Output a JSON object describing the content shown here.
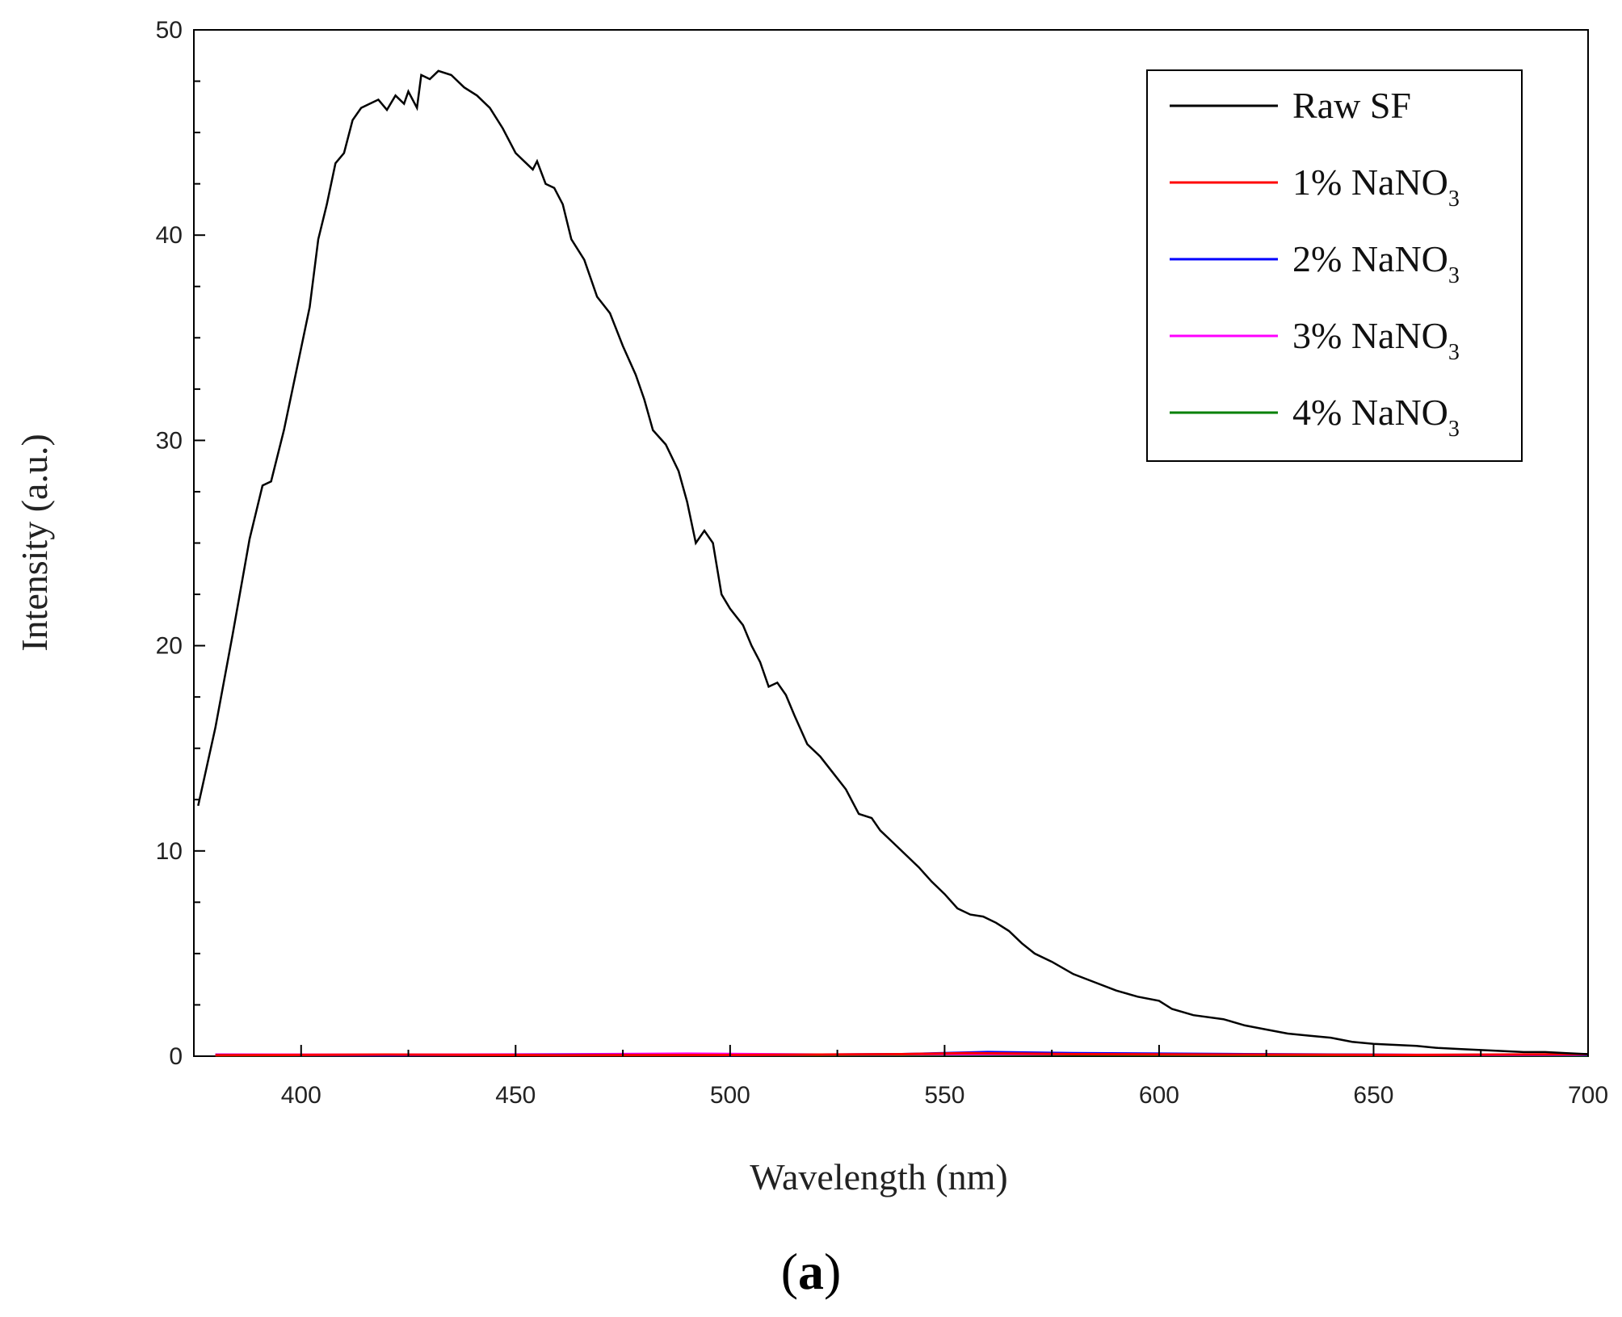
{
  "chart_data": {
    "type": "line",
    "xlabel": "Wavelength (nm)",
    "ylabel": "Intensity (a.u.)",
    "xlim": [
      375,
      700
    ],
    "ylim": [
      0,
      50
    ],
    "x_ticks": [
      400,
      450,
      500,
      550,
      600,
      650,
      700
    ],
    "y_ticks": [
      0,
      10,
      20,
      30,
      40,
      50
    ],
    "x_tick_labels": [
      "400",
      "450",
      "500",
      "550",
      "600",
      "650",
      "700"
    ],
    "y_tick_labels": [
      "0",
      "10",
      "20",
      "30",
      "40",
      "50"
    ],
    "grid": false,
    "legend_position": "top-right",
    "panel_label": {
      "open": "(",
      "letter": "a",
      "close": ")"
    },
    "series": [
      {
        "name": "Raw SF",
        "color": "#000000",
        "points": [
          [
            376,
            12.2
          ],
          [
            380,
            16.0
          ],
          [
            384,
            20.5
          ],
          [
            388,
            25.2
          ],
          [
            391,
            27.8
          ],
          [
            393,
            28.0
          ],
          [
            396,
            30.5
          ],
          [
            399,
            33.5
          ],
          [
            402,
            36.5
          ],
          [
            404,
            39.8
          ],
          [
            406,
            41.5
          ],
          [
            408,
            43.5
          ],
          [
            410,
            44.0
          ],
          [
            412,
            45.6
          ],
          [
            414,
            46.2
          ],
          [
            416,
            46.4
          ],
          [
            418,
            46.6
          ],
          [
            420,
            46.1
          ],
          [
            422,
            46.8
          ],
          [
            424,
            46.4
          ],
          [
            425,
            47.0
          ],
          [
            427,
            46.2
          ],
          [
            428,
            47.8
          ],
          [
            430,
            47.6
          ],
          [
            432,
            48.0
          ],
          [
            435,
            47.8
          ],
          [
            438,
            47.2
          ],
          [
            441,
            46.8
          ],
          [
            444,
            46.2
          ],
          [
            447,
            45.2
          ],
          [
            450,
            44.0
          ],
          [
            452,
            43.6
          ],
          [
            454,
            43.2
          ],
          [
            455,
            43.6
          ],
          [
            457,
            42.5
          ],
          [
            459,
            42.3
          ],
          [
            461,
            41.5
          ],
          [
            463,
            39.8
          ],
          [
            466,
            38.8
          ],
          [
            469,
            37.0
          ],
          [
            472,
            36.2
          ],
          [
            475,
            34.6
          ],
          [
            478,
            33.2
          ],
          [
            480,
            32.0
          ],
          [
            482,
            30.5
          ],
          [
            485,
            29.8
          ],
          [
            488,
            28.5
          ],
          [
            490,
            27.0
          ],
          [
            492,
            25.0
          ],
          [
            494,
            25.6
          ],
          [
            496,
            25.0
          ],
          [
            498,
            22.5
          ],
          [
            500,
            21.8
          ],
          [
            503,
            21.0
          ],
          [
            505,
            20.0
          ],
          [
            507,
            19.2
          ],
          [
            509,
            18.0
          ],
          [
            511,
            18.2
          ],
          [
            513,
            17.6
          ],
          [
            515,
            16.6
          ],
          [
            518,
            15.2
          ],
          [
            521,
            14.6
          ],
          [
            524,
            13.8
          ],
          [
            527,
            13.0
          ],
          [
            530,
            11.8
          ],
          [
            533,
            11.6
          ],
          [
            535,
            11.0
          ],
          [
            538,
            10.4
          ],
          [
            541,
            9.8
          ],
          [
            544,
            9.2
          ],
          [
            547,
            8.5
          ],
          [
            550,
            7.9
          ],
          [
            553,
            7.2
          ],
          [
            556,
            6.9
          ],
          [
            559,
            6.8
          ],
          [
            562,
            6.5
          ],
          [
            565,
            6.1
          ],
          [
            568,
            5.5
          ],
          [
            571,
            5.0
          ],
          [
            575,
            4.6
          ],
          [
            580,
            4.0
          ],
          [
            585,
            3.6
          ],
          [
            590,
            3.2
          ],
          [
            595,
            2.9
          ],
          [
            600,
            2.7
          ],
          [
            603,
            2.3
          ],
          [
            608,
            2.0
          ],
          [
            615,
            1.8
          ],
          [
            620,
            1.5
          ],
          [
            625,
            1.3
          ],
          [
            630,
            1.1
          ],
          [
            635,
            1.0
          ],
          [
            640,
            0.9
          ],
          [
            645,
            0.7
          ],
          [
            650,
            0.6
          ],
          [
            655,
            0.55
          ],
          [
            660,
            0.5
          ],
          [
            665,
            0.4
          ],
          [
            670,
            0.35
          ],
          [
            675,
            0.3
          ],
          [
            680,
            0.25
          ],
          [
            685,
            0.2
          ],
          [
            690,
            0.2
          ],
          [
            695,
            0.15
          ],
          [
            700,
            0.1
          ]
        ]
      },
      {
        "name": "1% NaNO",
        "subscript": "3",
        "color": "#ff0000",
        "points": [
          [
            380,
            0.05
          ],
          [
            420,
            0.08
          ],
          [
            460,
            0.05
          ],
          [
            500,
            0.06
          ],
          [
            540,
            0.1
          ],
          [
            555,
            0.15
          ],
          [
            580,
            0.1
          ],
          [
            620,
            0.08
          ],
          [
            660,
            0.06
          ],
          [
            700,
            0.1
          ]
        ]
      },
      {
        "name": "2% NaNO",
        "subscript": "3",
        "color": "#0000ff",
        "points": [
          [
            380,
            0.06
          ],
          [
            420,
            0.05
          ],
          [
            460,
            0.07
          ],
          [
            500,
            0.05
          ],
          [
            540,
            0.1
          ],
          [
            560,
            0.2
          ],
          [
            580,
            0.15
          ],
          [
            620,
            0.1
          ],
          [
            660,
            0.06
          ],
          [
            700,
            0.08
          ]
        ]
      },
      {
        "name": "3% NaNO",
        "subscript": "3",
        "color": "#ff00ff",
        "points": [
          [
            380,
            0.08
          ],
          [
            420,
            0.07
          ],
          [
            460,
            0.09
          ],
          [
            490,
            0.12
          ],
          [
            520,
            0.08
          ],
          [
            560,
            0.1
          ],
          [
            600,
            0.1
          ],
          [
            640,
            0.08
          ],
          [
            670,
            0.06
          ],
          [
            700,
            0.07
          ]
        ]
      },
      {
        "name": "4% NaNO",
        "subscript": "3",
        "color": "#008000",
        "points": [
          [
            380,
            0.04
          ],
          [
            420,
            0.05
          ],
          [
            460,
            0.06
          ],
          [
            500,
            0.05
          ],
          [
            540,
            0.06
          ],
          [
            580,
            0.08
          ],
          [
            620,
            0.05
          ],
          [
            660,
            0.05
          ],
          [
            700,
            0.04
          ]
        ]
      }
    ]
  }
}
